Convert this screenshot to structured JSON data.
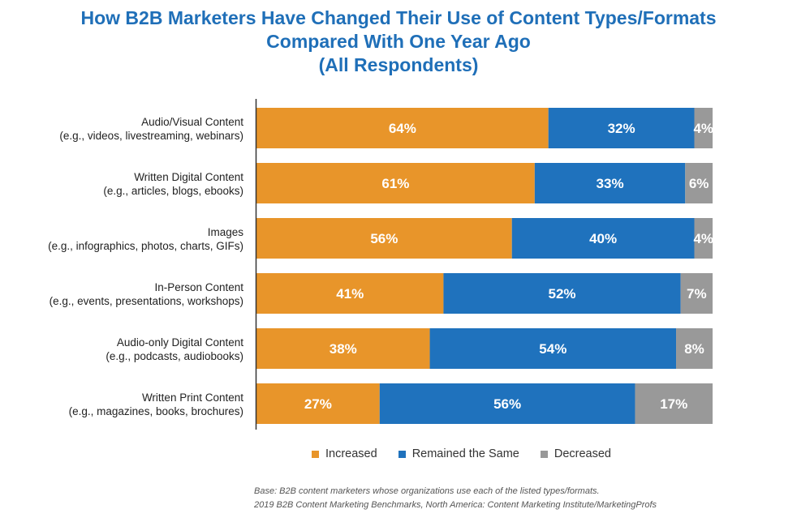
{
  "title_lines": [
    "How B2B Marketers Have Changed Their Use of Content Types/Formats",
    "Compared With One Year Ago",
    "(All Respondents)"
  ],
  "colors": {
    "title": "#1f6fb8",
    "increased": "#e8952a",
    "same": "#1f72bd",
    "decreased": "#999999",
    "axis": "#333333"
  },
  "legend": {
    "increased": "Increased",
    "same": "Remained the Same",
    "decreased": "Decreased"
  },
  "footnote": {
    "line1": "Base: B2B content marketers whose organizations use each of the listed types/formats.",
    "line2": "2019 B2B Content Marketing Benchmarks, North America: Content Marketing Institute/MarketingProfs"
  },
  "chart_data": {
    "type": "bar",
    "orientation": "horizontal",
    "stacked": true,
    "xlim": [
      0,
      100
    ],
    "categories": [
      [
        "Audio/Visual Content",
        "(e.g., videos, livestreaming, webinars)"
      ],
      [
        "Written Digital Content",
        "(e.g., articles, blogs, ebooks)"
      ],
      [
        "Images",
        "(e.g., infographics, photos, charts, GIFs)"
      ],
      [
        "In-Person Content",
        "(e.g., events, presentations, workshops)"
      ],
      [
        "Audio-only Digital Content",
        "(e.g., podcasts, audiobooks)"
      ],
      [
        "Written Print Content",
        "(e.g., magazines, books, brochures)"
      ]
    ],
    "series": [
      {
        "name": "Increased",
        "values": [
          64,
          61,
          56,
          41,
          38,
          27
        ]
      },
      {
        "name": "Remained the Same",
        "values": [
          32,
          33,
          40,
          52,
          54,
          56
        ]
      },
      {
        "name": "Decreased",
        "values": [
          4,
          6,
          4,
          7,
          8,
          17
        ]
      }
    ],
    "legend_position": "bottom",
    "grid": false
  }
}
